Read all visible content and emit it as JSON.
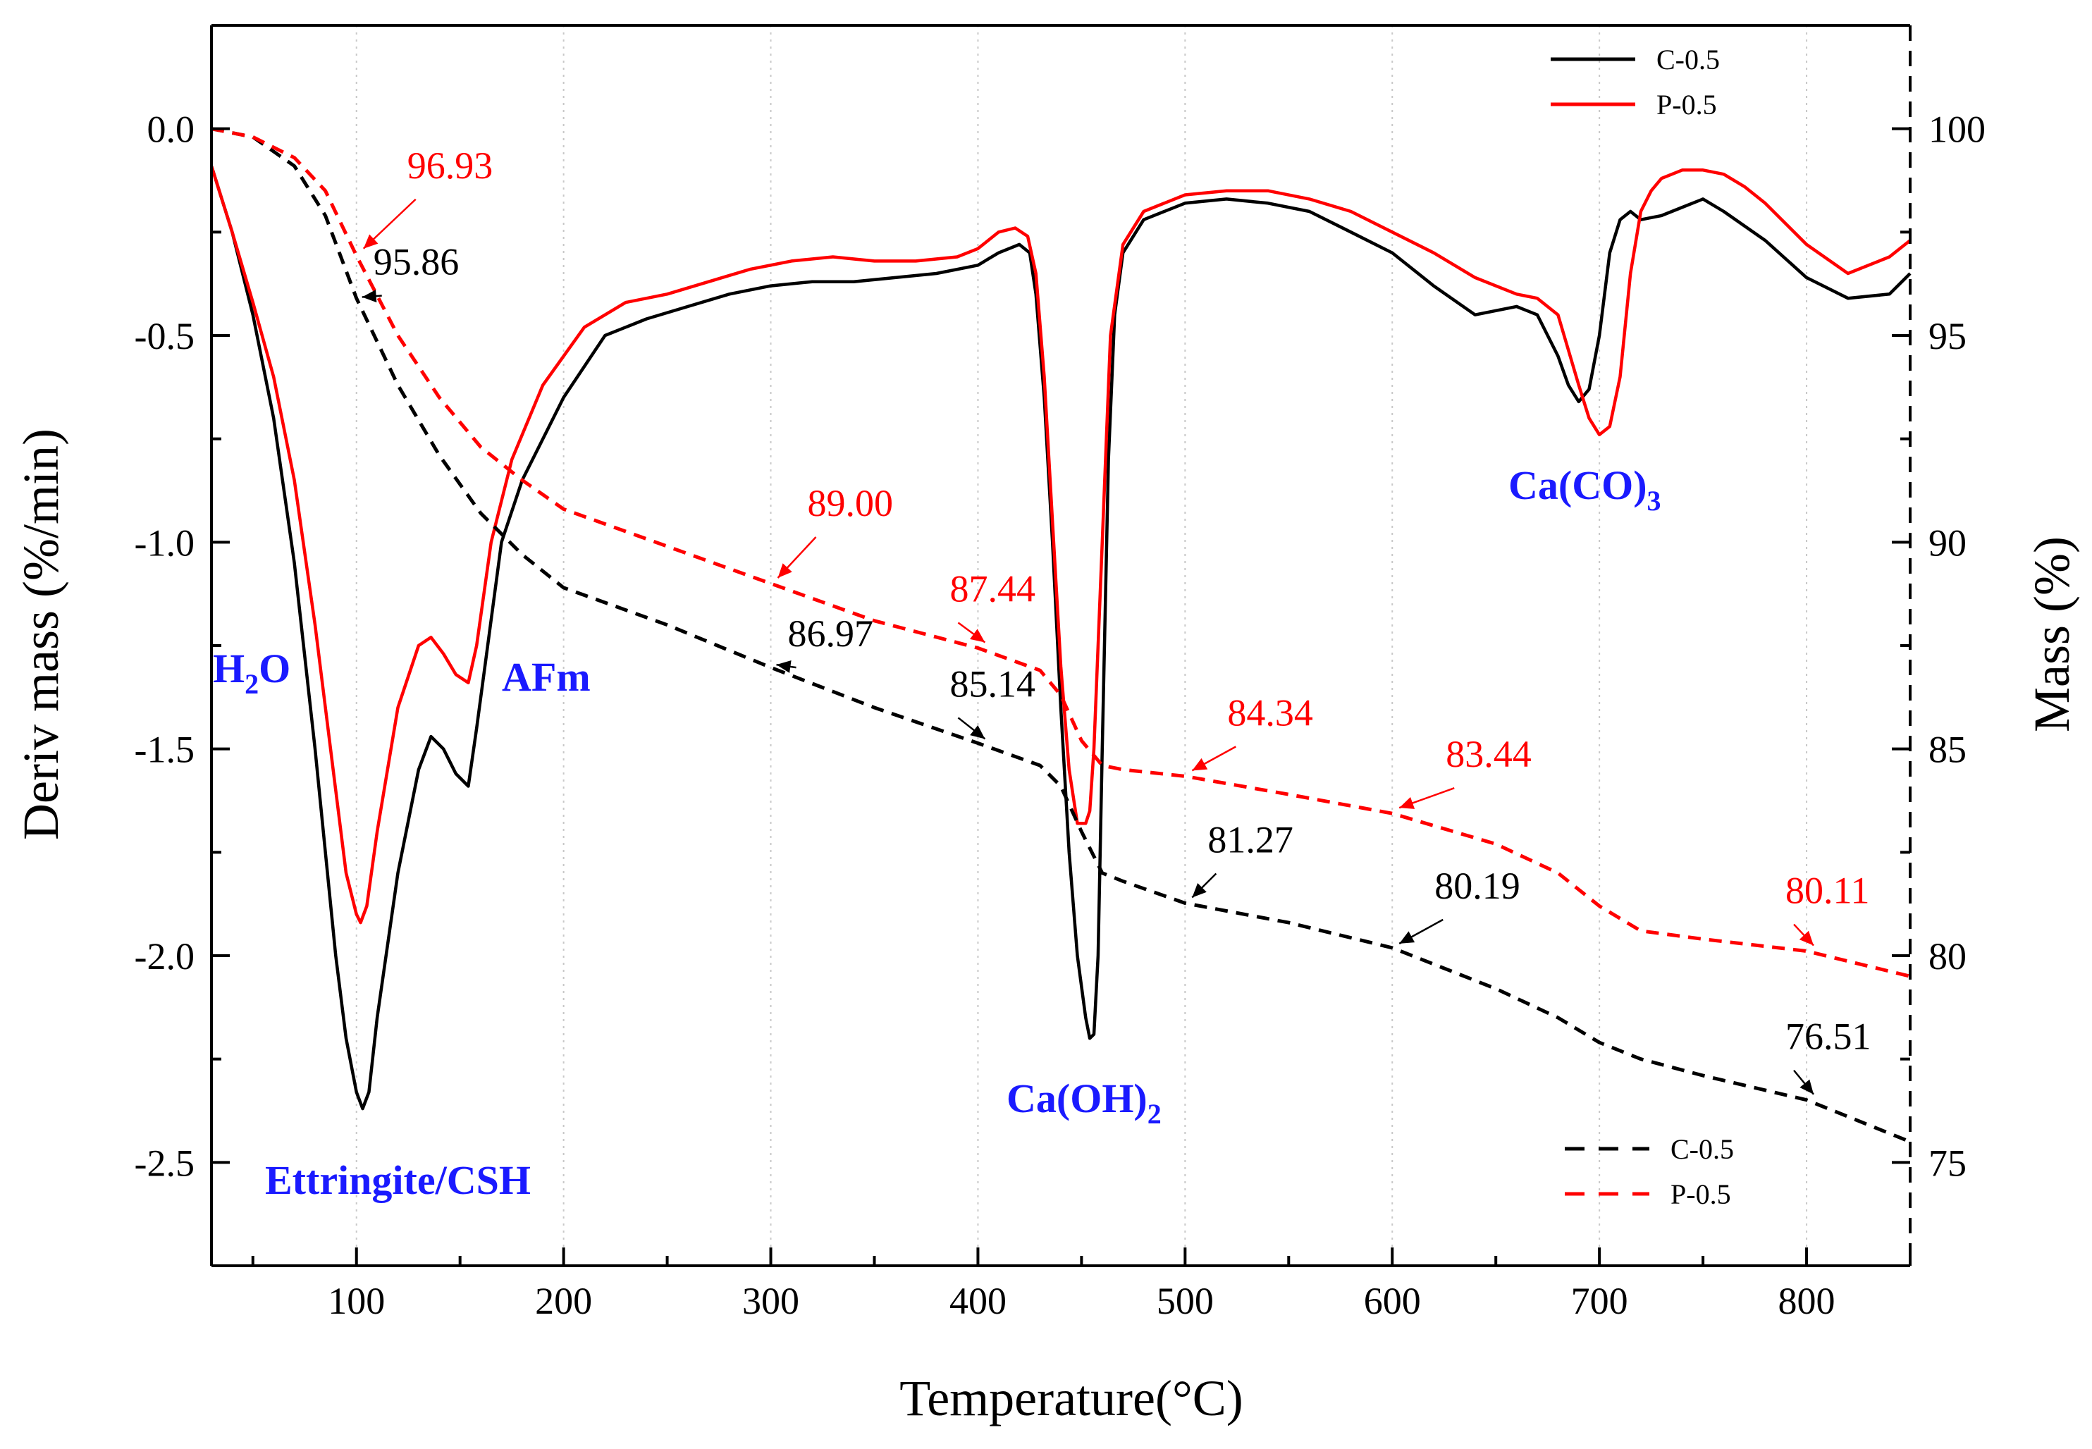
{
  "colors": {
    "control": "#000000",
    "pumice": "#ff0000",
    "annotation": "#1a1aff",
    "grid": "#c8c8c8"
  },
  "chart_data": {
    "type": "line",
    "title": "",
    "xlabel": "Temperature(°C)",
    "ylabel_left": "Deriv mass (%/min)",
    "ylabel_right": "Mass (%)",
    "xlim": [
      30,
      850
    ],
    "ylim_left": [
      -2.75,
      0.25
    ],
    "ylim_right": [
      72.5,
      102.5
    ],
    "x_ticks": [
      100,
      200,
      300,
      400,
      500,
      600,
      700,
      800
    ],
    "x_tick_labels": [
      "100",
      "200",
      "300",
      "400",
      "500",
      "600",
      "700",
      "800"
    ],
    "y_left_ticks": [
      0.0,
      -0.5,
      -1.0,
      -1.5,
      -2.0,
      -2.5
    ],
    "y_left_tick_labels": [
      "0.0",
      "-0.5",
      "-1.0",
      "-1.5",
      "-2.0",
      "-2.5"
    ],
    "y_right_ticks": [
      100,
      95,
      90,
      85,
      80,
      75
    ],
    "y_right_tick_labels": [
      "100",
      "95",
      "90",
      "85",
      "80",
      "75"
    ],
    "grid": "vertical dotted",
    "legend_top": {
      "position": "top-right",
      "entries": [
        {
          "name": "C-0.5",
          "style": "solid",
          "color": "#000000"
        },
        {
          "name": "P-0.5",
          "style": "solid",
          "color": "#ff0000"
        }
      ]
    },
    "legend_bottom": {
      "position": "bottom-right",
      "entries": [
        {
          "name": "C-0.5",
          "style": "dashed",
          "color": "#000000"
        },
        {
          "name": "P-0.5",
          "style": "dashed",
          "color": "#ff0000"
        }
      ]
    },
    "series": [
      {
        "name": "C-0.5",
        "kind": "DTG",
        "axis": "left",
        "style": "solid",
        "color": "#000000",
        "x": [
          30,
          40,
          50,
          60,
          70,
          80,
          90,
          95,
          100,
          103,
          106,
          110,
          120,
          130,
          136,
          142,
          148,
          154,
          158,
          162,
          170,
          180,
          200,
          220,
          240,
          260,
          280,
          300,
          320,
          340,
          360,
          380,
          400,
          410,
          420,
          425,
          428,
          432,
          436,
          440,
          444,
          448,
          452,
          454,
          456,
          458,
          460,
          463,
          466,
          470,
          480,
          500,
          520,
          540,
          560,
          580,
          600,
          620,
          640,
          660,
          670,
          680,
          685,
          690,
          695,
          700,
          705,
          710,
          715,
          720,
          730,
          740,
          750,
          760,
          780,
          800,
          820,
          840,
          850
        ],
        "y": [
          -0.09,
          -0.25,
          -0.45,
          -0.7,
          -1.05,
          -1.5,
          -2.0,
          -2.2,
          -2.33,
          -2.37,
          -2.33,
          -2.15,
          -1.8,
          -1.55,
          -1.47,
          -1.5,
          -1.56,
          -1.59,
          -1.45,
          -1.3,
          -1.0,
          -0.85,
          -0.65,
          -0.5,
          -0.46,
          -0.43,
          -0.4,
          -0.38,
          -0.37,
          -0.37,
          -0.36,
          -0.35,
          -0.33,
          -0.3,
          -0.28,
          -0.3,
          -0.4,
          -0.65,
          -1.0,
          -1.4,
          -1.75,
          -2.0,
          -2.15,
          -2.2,
          -2.19,
          -2.0,
          -1.5,
          -0.8,
          -0.45,
          -0.3,
          -0.22,
          -0.18,
          -0.17,
          -0.18,
          -0.2,
          -0.25,
          -0.3,
          -0.38,
          -0.45,
          -0.43,
          -0.45,
          -0.55,
          -0.62,
          -0.66,
          -0.63,
          -0.5,
          -0.3,
          -0.22,
          -0.2,
          -0.22,
          -0.21,
          -0.19,
          -0.17,
          -0.2,
          -0.27,
          -0.36,
          -0.41,
          -0.4,
          -0.35
        ]
      },
      {
        "name": "P-0.5",
        "kind": "DTG",
        "axis": "left",
        "style": "solid",
        "color": "#ff0000",
        "x": [
          30,
          40,
          50,
          60,
          70,
          80,
          90,
          95,
          100,
          102,
          105,
          110,
          120,
          130,
          136,
          142,
          148,
          154,
          158,
          165,
          175,
          190,
          210,
          230,
          250,
          270,
          290,
          310,
          330,
          350,
          370,
          390,
          400,
          410,
          418,
          424,
          428,
          432,
          436,
          440,
          444,
          448,
          452,
          454,
          456,
          460,
          464,
          470,
          480,
          500,
          520,
          540,
          560,
          580,
          600,
          620,
          640,
          660,
          670,
          680,
          690,
          695,
          700,
          705,
          710,
          715,
          720,
          725,
          730,
          740,
          750,
          760,
          770,
          780,
          800,
          820,
          840,
          850
        ],
        "y": [
          -0.09,
          -0.25,
          -0.42,
          -0.6,
          -0.85,
          -1.2,
          -1.6,
          -1.8,
          -1.9,
          -1.92,
          -1.88,
          -1.7,
          -1.4,
          -1.25,
          -1.23,
          -1.27,
          -1.32,
          -1.34,
          -1.25,
          -1.0,
          -0.8,
          -0.62,
          -0.48,
          -0.42,
          -0.4,
          -0.37,
          -0.34,
          -0.32,
          -0.31,
          -0.32,
          -0.32,
          -0.31,
          -0.29,
          -0.25,
          -0.24,
          -0.26,
          -0.35,
          -0.6,
          -0.95,
          -1.3,
          -1.55,
          -1.68,
          -1.68,
          -1.65,
          -1.5,
          -1.0,
          -0.5,
          -0.28,
          -0.2,
          -0.16,
          -0.15,
          -0.15,
          -0.17,
          -0.2,
          -0.25,
          -0.3,
          -0.36,
          -0.4,
          -0.41,
          -0.45,
          -0.62,
          -0.7,
          -0.74,
          -0.72,
          -0.6,
          -0.35,
          -0.2,
          -0.15,
          -0.12,
          -0.1,
          -0.1,
          -0.11,
          -0.14,
          -0.18,
          -0.28,
          -0.35,
          -0.31,
          -0.27
        ]
      },
      {
        "name": "C-0.5",
        "kind": "TG",
        "axis": "right",
        "style": "dashed",
        "color": "#000000",
        "x": [
          30,
          50,
          70,
          85,
          100,
          120,
          140,
          160,
          180,
          200,
          250,
          300,
          350,
          400,
          430,
          440,
          450,
          460,
          470,
          500,
          550,
          600,
          650,
          680,
          700,
          720,
          750,
          800,
          850
        ],
        "y": [
          100,
          99.8,
          99.1,
          97.9,
          95.9,
          93.8,
          92.1,
          90.7,
          89.7,
          88.9,
          88.0,
          86.97,
          86.0,
          85.14,
          84.6,
          84.1,
          83.0,
          82.0,
          81.8,
          81.27,
          80.8,
          80.19,
          79.2,
          78.5,
          77.9,
          77.5,
          77.1,
          76.51,
          75.5
        ]
      },
      {
        "name": "P-0.5",
        "kind": "TG",
        "axis": "right",
        "style": "dashed",
        "color": "#ff0000",
        "x": [
          30,
          50,
          70,
          85,
          100,
          120,
          140,
          160,
          180,
          200,
          250,
          300,
          350,
          400,
          430,
          440,
          450,
          460,
          470,
          500,
          550,
          600,
          650,
          680,
          700,
          720,
          750,
          800,
          850
        ],
        "y": [
          100,
          99.8,
          99.3,
          98.5,
          96.93,
          95.0,
          93.5,
          92.3,
          91.5,
          90.8,
          89.9,
          89.0,
          88.1,
          87.44,
          86.9,
          86.3,
          85.2,
          84.6,
          84.5,
          84.34,
          83.9,
          83.44,
          82.7,
          82.0,
          81.2,
          80.6,
          80.4,
          80.11,
          79.5
        ]
      }
    ],
    "mass_annotations": [
      {
        "series": "C-0.5",
        "text": "95.86",
        "x": 100,
        "y": 95.86
      },
      {
        "series": "P-0.5",
        "text": "96.93",
        "x": 100,
        "y": 96.93
      },
      {
        "series": "C-0.5",
        "text": "86.97",
        "x": 300,
        "y": 86.97
      },
      {
        "series": "P-0.5",
        "text": "89.00",
        "x": 300,
        "y": 89.0
      },
      {
        "series": "C-0.5",
        "text": "85.14",
        "x": 400,
        "y": 85.14
      },
      {
        "series": "P-0.5",
        "text": "87.44",
        "x": 400,
        "y": 87.44
      },
      {
        "series": "C-0.5",
        "text": "81.27",
        "x": 500,
        "y": 81.27
      },
      {
        "series": "P-0.5",
        "text": "84.34",
        "x": 500,
        "y": 84.34
      },
      {
        "series": "C-0.5",
        "text": "80.19",
        "x": 600,
        "y": 80.19
      },
      {
        "series": "P-0.5",
        "text": "83.44",
        "x": 600,
        "y": 83.44
      },
      {
        "series": "C-0.5",
        "text": "76.51",
        "x": 800,
        "y": 76.51
      },
      {
        "series": "P-0.5",
        "text": "80.11",
        "x": 800,
        "y": 80.11
      }
    ],
    "peak_annotations": [
      {
        "text": "H",
        "sub": "2",
        "tail": "O",
        "near": "water peak"
      },
      {
        "text": "AFm",
        "sub": "",
        "tail": "",
        "near": "AFm shoulder"
      },
      {
        "text": "Ettringite/CSH",
        "sub": "",
        "tail": "",
        "near": "ettringite/CSH trough"
      },
      {
        "text": "Ca(OH)",
        "sub": "2",
        "tail": "",
        "near": "portlandite trough"
      },
      {
        "text": "Ca(CO)",
        "sub": "3",
        "tail": "",
        "near": "carbonate trough"
      }
    ]
  }
}
